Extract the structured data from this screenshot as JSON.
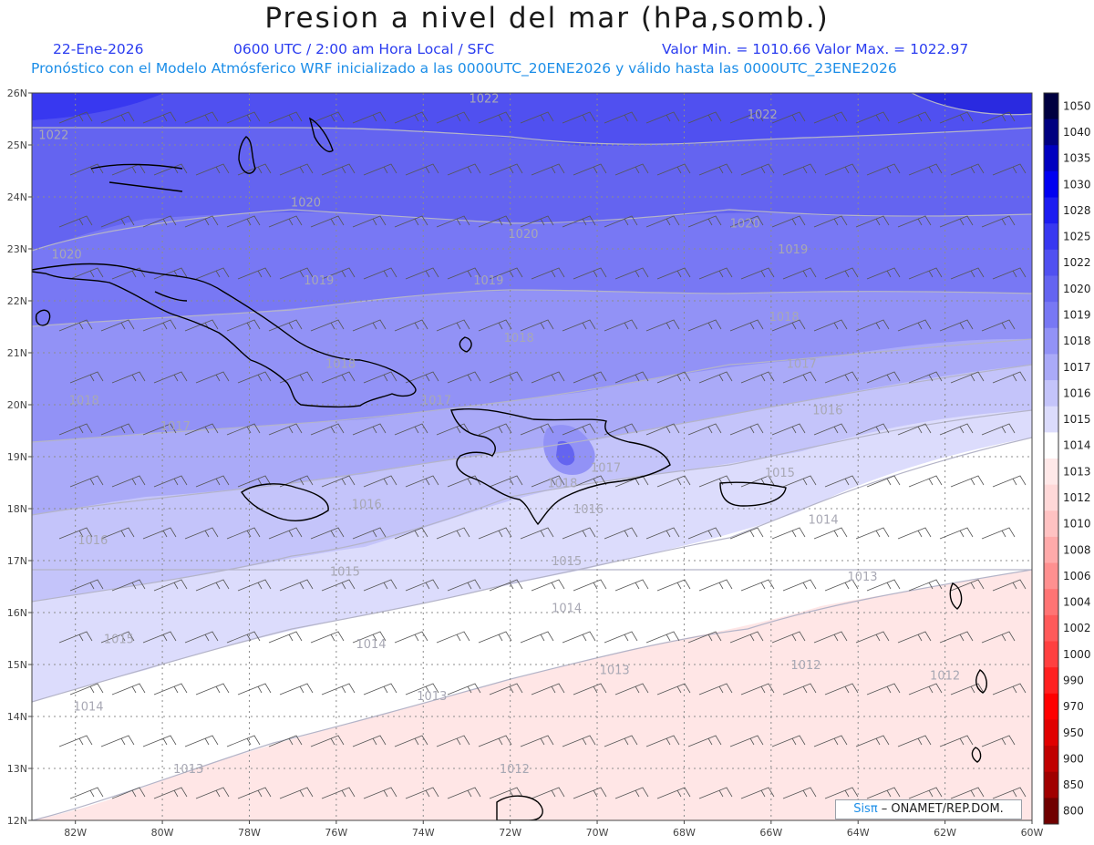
{
  "title": "Presion a nivel del mar (hPa,somb.)",
  "subtitle": {
    "date": "22-Ene-2026",
    "time": "0600 UTC / 2:00 am Hora Local / SFC",
    "minmax": "Valor Min. = 1010.66  Valor Max. = 1022.97",
    "model": "Pronóstico con el Modelo Atmósferico WRF inicializado a las 0000UTC_20ENE2026 y válido hasta las  0000UTC_23ENE2026"
  },
  "map": {
    "lat_range": [
      12,
      26
    ],
    "lon_range": [
      -83,
      -60
    ],
    "lat_ticks": [
      "26N",
      "25N",
      "24N",
      "23N",
      "22N",
      "21N",
      "20N",
      "19N",
      "18N",
      "17N",
      "16N",
      "15N",
      "14N",
      "13N",
      "12N"
    ],
    "lon_ticks": [
      "82W",
      "80W",
      "78W",
      "76W",
      "74W",
      "72W",
      "70W",
      "68W",
      "66W",
      "64W",
      "62W",
      "60W"
    ],
    "contour_labels": [
      {
        "text": "1022",
        "lon": -82.5,
        "lat": 25.2
      },
      {
        "text": "1022",
        "lon": -72.6,
        "lat": 25.9
      },
      {
        "text": "1022",
        "lon": -66.2,
        "lat": 25.6
      },
      {
        "text": "1020",
        "lon": -82.2,
        "lat": 22.9
      },
      {
        "text": "1020",
        "lon": -76.7,
        "lat": 23.9
      },
      {
        "text": "1020",
        "lon": -71.7,
        "lat": 23.3
      },
      {
        "text": "1020",
        "lon": -66.6,
        "lat": 23.5
      },
      {
        "text": "1019",
        "lon": -76.4,
        "lat": 22.4
      },
      {
        "text": "1019",
        "lon": -72.5,
        "lat": 22.4
      },
      {
        "text": "1019",
        "lon": -65.5,
        "lat": 23.0
      },
      {
        "text": "1018",
        "lon": -81.8,
        "lat": 20.1
      },
      {
        "text": "1018",
        "lon": -75.9,
        "lat": 20.8
      },
      {
        "text": "1018",
        "lon": -71.8,
        "lat": 21.3
      },
      {
        "text": "1018",
        "lon": -65.7,
        "lat": 21.7
      },
      {
        "text": "1017",
        "lon": -79.7,
        "lat": 19.6
      },
      {
        "text": "1017",
        "lon": -73.7,
        "lat": 20.1
      },
      {
        "text": "1017",
        "lon": -69.8,
        "lat": 18.8
      },
      {
        "text": "1017",
        "lon": -65.3,
        "lat": 20.8
      },
      {
        "text": "1016",
        "lon": -81.6,
        "lat": 17.4
      },
      {
        "text": "1016",
        "lon": -75.3,
        "lat": 18.1
      },
      {
        "text": "1016",
        "lon": -70.2,
        "lat": 18.0
      },
      {
        "text": "1016",
        "lon": -64.7,
        "lat": 19.9
      },
      {
        "text": "1015",
        "lon": -75.8,
        "lat": 16.8
      },
      {
        "text": "1015",
        "lon": -70.7,
        "lat": 17.0
      },
      {
        "text": "1015",
        "lon": -65.8,
        "lat": 18.7
      },
      {
        "text": "1015",
        "lon": -81.0,
        "lat": 15.5
      },
      {
        "text": "1014",
        "lon": -81.7,
        "lat": 14.2
      },
      {
        "text": "1014",
        "lon": -75.2,
        "lat": 15.4
      },
      {
        "text": "1014",
        "lon": -70.7,
        "lat": 16.1
      },
      {
        "text": "1014",
        "lon": -64.8,
        "lat": 17.8
      },
      {
        "text": "1013",
        "lon": -79.4,
        "lat": 13.0
      },
      {
        "text": "1013",
        "lon": -73.8,
        "lat": 14.4
      },
      {
        "text": "1013",
        "lon": -69.6,
        "lat": 14.9
      },
      {
        "text": "1013",
        "lon": -63.9,
        "lat": 16.7
      },
      {
        "text": "1012",
        "lon": -71.9,
        "lat": 13.0
      },
      {
        "text": "1012",
        "lon": -65.2,
        "lat": 15.0
      },
      {
        "text": "1012",
        "lon": -62.0,
        "lat": 14.8
      },
      {
        "text": "1018",
        "lon": -70.8,
        "lat": 18.5
      }
    ]
  },
  "colorbar": {
    "labels": [
      "1050",
      "1040",
      "1035",
      "1030",
      "1028",
      "1025",
      "1022",
      "1020",
      "1019",
      "1018",
      "1017",
      "1016",
      "1015",
      "1014",
      "1013",
      "1012",
      "1010",
      "1008",
      "1006",
      "1004",
      "1002",
      "1000",
      "990",
      "970",
      "950",
      "900",
      "850",
      "800"
    ],
    "colors": [
      "#000040",
      "#000080",
      "#0000c0",
      "#0000f0",
      "#1c1cf0",
      "#3838f0",
      "#5050f0",
      "#6464f0",
      "#7878f4",
      "#9292f6",
      "#aaaaf8",
      "#c4c4fa",
      "#dcdcfc",
      "#ffffff",
      "#ffe8e8",
      "#ffd8d8",
      "#ffc2c2",
      "#ffaaaa",
      "#ff9090",
      "#ff7474",
      "#ff5a5a",
      "#ff4040",
      "#ff2020",
      "#ff0000",
      "#e00000",
      "#c00000",
      "#a00000",
      "#700000"
    ]
  },
  "credit": {
    "brand": "Sisπ",
    "org": " – ONAMET/REP.DOM."
  }
}
